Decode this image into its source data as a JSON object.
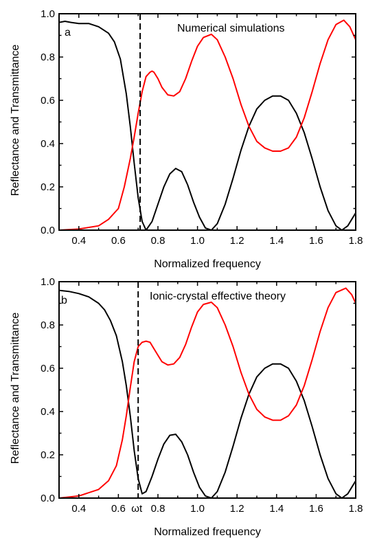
{
  "chart_data": [
    {
      "type": "line",
      "panel_label": "a",
      "annotation": "Numerical simulations",
      "xlabel": "Normalized frequency",
      "ylabel": "Reflectance and Transmittance",
      "xlim": [
        0.3,
        1.8
      ],
      "ylim": [
        0.0,
        1.0
      ],
      "x_ticks": [
        0.4,
        0.6,
        0.8,
        1.0,
        1.2,
        1.4,
        1.6,
        1.8
      ],
      "x_tick_labels": [
        "0.4",
        "0.6",
        "0.8",
        "1.0",
        "1.2",
        "1.4",
        "1.6",
        "1.8"
      ],
      "y_ticks": [
        0.0,
        0.2,
        0.4,
        0.6,
        0.8,
        1.0
      ],
      "y_tick_labels": [
        "0.0",
        "0.2",
        "0.4",
        "0.6",
        "0.8",
        "1.0"
      ],
      "vline": {
        "x": 0.71,
        "style": "dashed",
        "label": ""
      },
      "grid": false,
      "series": [
        {
          "color": "#000000",
          "x": [
            0.3,
            0.33,
            0.36,
            0.4,
            0.45,
            0.5,
            0.55,
            0.58,
            0.61,
            0.64,
            0.66,
            0.68,
            0.7,
            0.72,
            0.74,
            0.77,
            0.8,
            0.83,
            0.86,
            0.89,
            0.92,
            0.95,
            0.98,
            1.01,
            1.04,
            1.07,
            1.1,
            1.14,
            1.18,
            1.22,
            1.26,
            1.3,
            1.34,
            1.38,
            1.42,
            1.46,
            1.5,
            1.54,
            1.58,
            1.62,
            1.66,
            1.7,
            1.73,
            1.76,
            1.8
          ],
          "y": [
            0.96,
            0.965,
            0.96,
            0.955,
            0.955,
            0.94,
            0.91,
            0.87,
            0.79,
            0.63,
            0.48,
            0.31,
            0.15,
            0.04,
            0.0,
            0.04,
            0.12,
            0.2,
            0.26,
            0.285,
            0.27,
            0.21,
            0.13,
            0.06,
            0.01,
            0.0,
            0.03,
            0.12,
            0.24,
            0.37,
            0.48,
            0.56,
            0.6,
            0.62,
            0.62,
            0.6,
            0.54,
            0.45,
            0.33,
            0.2,
            0.09,
            0.02,
            0.0,
            0.02,
            0.08
          ]
        },
        {
          "color": "#ff0000",
          "x": [
            0.3,
            0.4,
            0.5,
            0.55,
            0.6,
            0.63,
            0.66,
            0.68,
            0.7,
            0.72,
            0.74,
            0.76,
            0.77,
            0.78,
            0.8,
            0.82,
            0.85,
            0.88,
            0.91,
            0.94,
            0.97,
            1.0,
            1.03,
            1.07,
            1.1,
            1.14,
            1.18,
            1.22,
            1.26,
            1.3,
            1.34,
            1.38,
            1.42,
            1.46,
            1.5,
            1.54,
            1.58,
            1.62,
            1.66,
            1.7,
            1.74,
            1.77,
            1.8
          ],
          "y": [
            0.0,
            0.005,
            0.02,
            0.05,
            0.1,
            0.2,
            0.33,
            0.43,
            0.54,
            0.64,
            0.71,
            0.73,
            0.735,
            0.73,
            0.7,
            0.66,
            0.625,
            0.62,
            0.64,
            0.7,
            0.78,
            0.85,
            0.89,
            0.905,
            0.88,
            0.8,
            0.7,
            0.58,
            0.48,
            0.41,
            0.38,
            0.365,
            0.365,
            0.38,
            0.43,
            0.52,
            0.64,
            0.77,
            0.88,
            0.95,
            0.97,
            0.94,
            0.88
          ]
        }
      ]
    },
    {
      "type": "line",
      "panel_label": "b",
      "annotation": "Ionic-crystal effective theory",
      "xlabel": "Normalized frequency",
      "ylabel": "Reflectance and Transmittance",
      "xlim": [
        0.3,
        1.8
      ],
      "ylim": [
        0.0,
        1.0
      ],
      "x_ticks": [
        0.4,
        0.6,
        0.8,
        1.0,
        1.2,
        1.4,
        1.6,
        1.8
      ],
      "x_tick_labels": [
        "0.4",
        "0.6",
        "0.8",
        "1.0",
        "1.2",
        "1.4",
        "1.6",
        "1.8"
      ],
      "y_ticks": [
        0.0,
        0.2,
        0.4,
        0.6,
        0.8,
        1.0
      ],
      "y_tick_labels": [
        "0.0",
        "0.2",
        "0.4",
        "0.6",
        "0.8",
        "1.0"
      ],
      "vline": {
        "x": 0.7,
        "style": "dashed",
        "label": "ωt"
      },
      "grid": false,
      "series": [
        {
          "color": "#000000",
          "x": [
            0.3,
            0.35,
            0.4,
            0.45,
            0.5,
            0.53,
            0.56,
            0.59,
            0.62,
            0.64,
            0.66,
            0.68,
            0.7,
            0.72,
            0.74,
            0.77,
            0.8,
            0.83,
            0.86,
            0.89,
            0.92,
            0.95,
            0.98,
            1.01,
            1.04,
            1.07,
            1.1,
            1.14,
            1.18,
            1.22,
            1.26,
            1.3,
            1.34,
            1.38,
            1.42,
            1.46,
            1.5,
            1.54,
            1.58,
            1.62,
            1.66,
            1.7,
            1.73,
            1.76,
            1.8
          ],
          "y": [
            0.96,
            0.955,
            0.945,
            0.93,
            0.9,
            0.87,
            0.82,
            0.75,
            0.63,
            0.52,
            0.38,
            0.22,
            0.09,
            0.02,
            0.03,
            0.1,
            0.18,
            0.25,
            0.29,
            0.295,
            0.26,
            0.2,
            0.12,
            0.05,
            0.01,
            0.0,
            0.03,
            0.12,
            0.24,
            0.37,
            0.48,
            0.56,
            0.6,
            0.62,
            0.62,
            0.6,
            0.54,
            0.45,
            0.33,
            0.2,
            0.09,
            0.02,
            0.0,
            0.02,
            0.08
          ]
        },
        {
          "color": "#ff0000",
          "x": [
            0.3,
            0.4,
            0.5,
            0.55,
            0.59,
            0.62,
            0.64,
            0.66,
            0.68,
            0.7,
            0.72,
            0.74,
            0.76,
            0.78,
            0.8,
            0.82,
            0.85,
            0.88,
            0.91,
            0.94,
            0.97,
            1.0,
            1.03,
            1.07,
            1.1,
            1.14,
            1.18,
            1.22,
            1.26,
            1.3,
            1.34,
            1.38,
            1.42,
            1.46,
            1.5,
            1.54,
            1.58,
            1.62,
            1.66,
            1.7,
            1.75,
            1.78,
            1.8
          ],
          "y": [
            0.0,
            0.01,
            0.04,
            0.08,
            0.15,
            0.27,
            0.38,
            0.51,
            0.63,
            0.7,
            0.72,
            0.725,
            0.72,
            0.69,
            0.66,
            0.63,
            0.615,
            0.62,
            0.65,
            0.71,
            0.79,
            0.86,
            0.895,
            0.905,
            0.88,
            0.8,
            0.7,
            0.58,
            0.48,
            0.41,
            0.375,
            0.36,
            0.36,
            0.38,
            0.43,
            0.52,
            0.64,
            0.77,
            0.88,
            0.95,
            0.97,
            0.94,
            0.9
          ]
        }
      ]
    }
  ]
}
